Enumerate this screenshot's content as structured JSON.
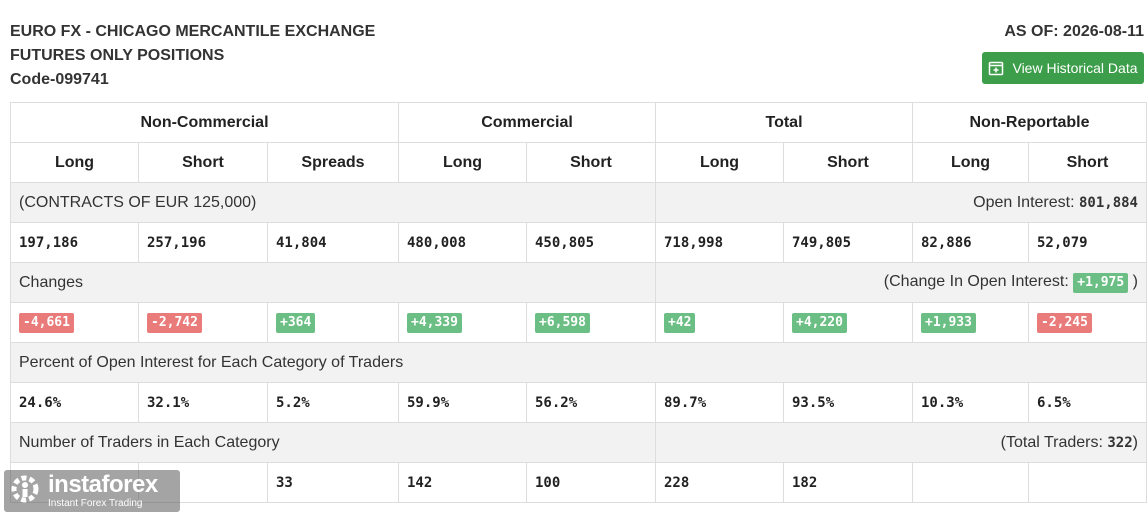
{
  "header": {
    "title_line1": "EURO FX - CHICAGO MERCANTILE EXCHANGE",
    "title_line2": "FUTURES ONLY POSITIONS",
    "code": "Code-099741",
    "as_of": "AS OF: 2026-08-11",
    "historical_button_label": "View Historical Data",
    "historical_button_icon": "calendar-plus-icon"
  },
  "table": {
    "groups": [
      "Non-Commercial",
      "Commercial",
      "Total",
      "Non-Reportable"
    ],
    "subheaders": [
      "Long",
      "Short",
      "Spreads",
      "Long",
      "Short",
      "Long",
      "Short",
      "Long",
      "Short"
    ],
    "contracts_label": "(CONTRACTS OF EUR 125,000)",
    "open_interest_label": "Open Interest:",
    "open_interest_value": "801,884",
    "positions": [
      "197,186",
      "257,196",
      "41,804",
      "480,008",
      "450,805",
      "718,998",
      "749,805",
      "82,886",
      "52,079"
    ],
    "changes_label": "Changes",
    "change_oi_label": "(Change In Open Interest:",
    "change_oi_value": "+1,975",
    "change_oi_close": ")",
    "changes": [
      "-4,661",
      "-2,742",
      "+364",
      "+4,339",
      "+6,598",
      "+42",
      "+4,220",
      "+1,933",
      "-2,245"
    ],
    "percent_label": "Percent of Open Interest for Each Category of Traders",
    "percents": [
      "24.6%",
      "32.1%",
      "5.2%",
      "59.9%",
      "56.2%",
      "89.7%",
      "93.5%",
      "10.3%",
      "6.5%"
    ],
    "traders_label": "Number of Traders in Each Category",
    "total_traders_label": "(Total Traders:",
    "total_traders_value": "322",
    "total_traders_close": ")",
    "traders": [
      "",
      "",
      "33",
      "142",
      "100",
      "228",
      "182",
      "",
      ""
    ]
  },
  "watermark": {
    "name": "instaforex",
    "tagline": "Instant Forex Trading",
    "icon": "instaforex-logo-icon"
  },
  "colors": {
    "button_green": "#3c9e4a",
    "positive_badge": "#6cbf84",
    "negative_badge": "#e97b7b",
    "section_bg": "#f2f2f2"
  }
}
